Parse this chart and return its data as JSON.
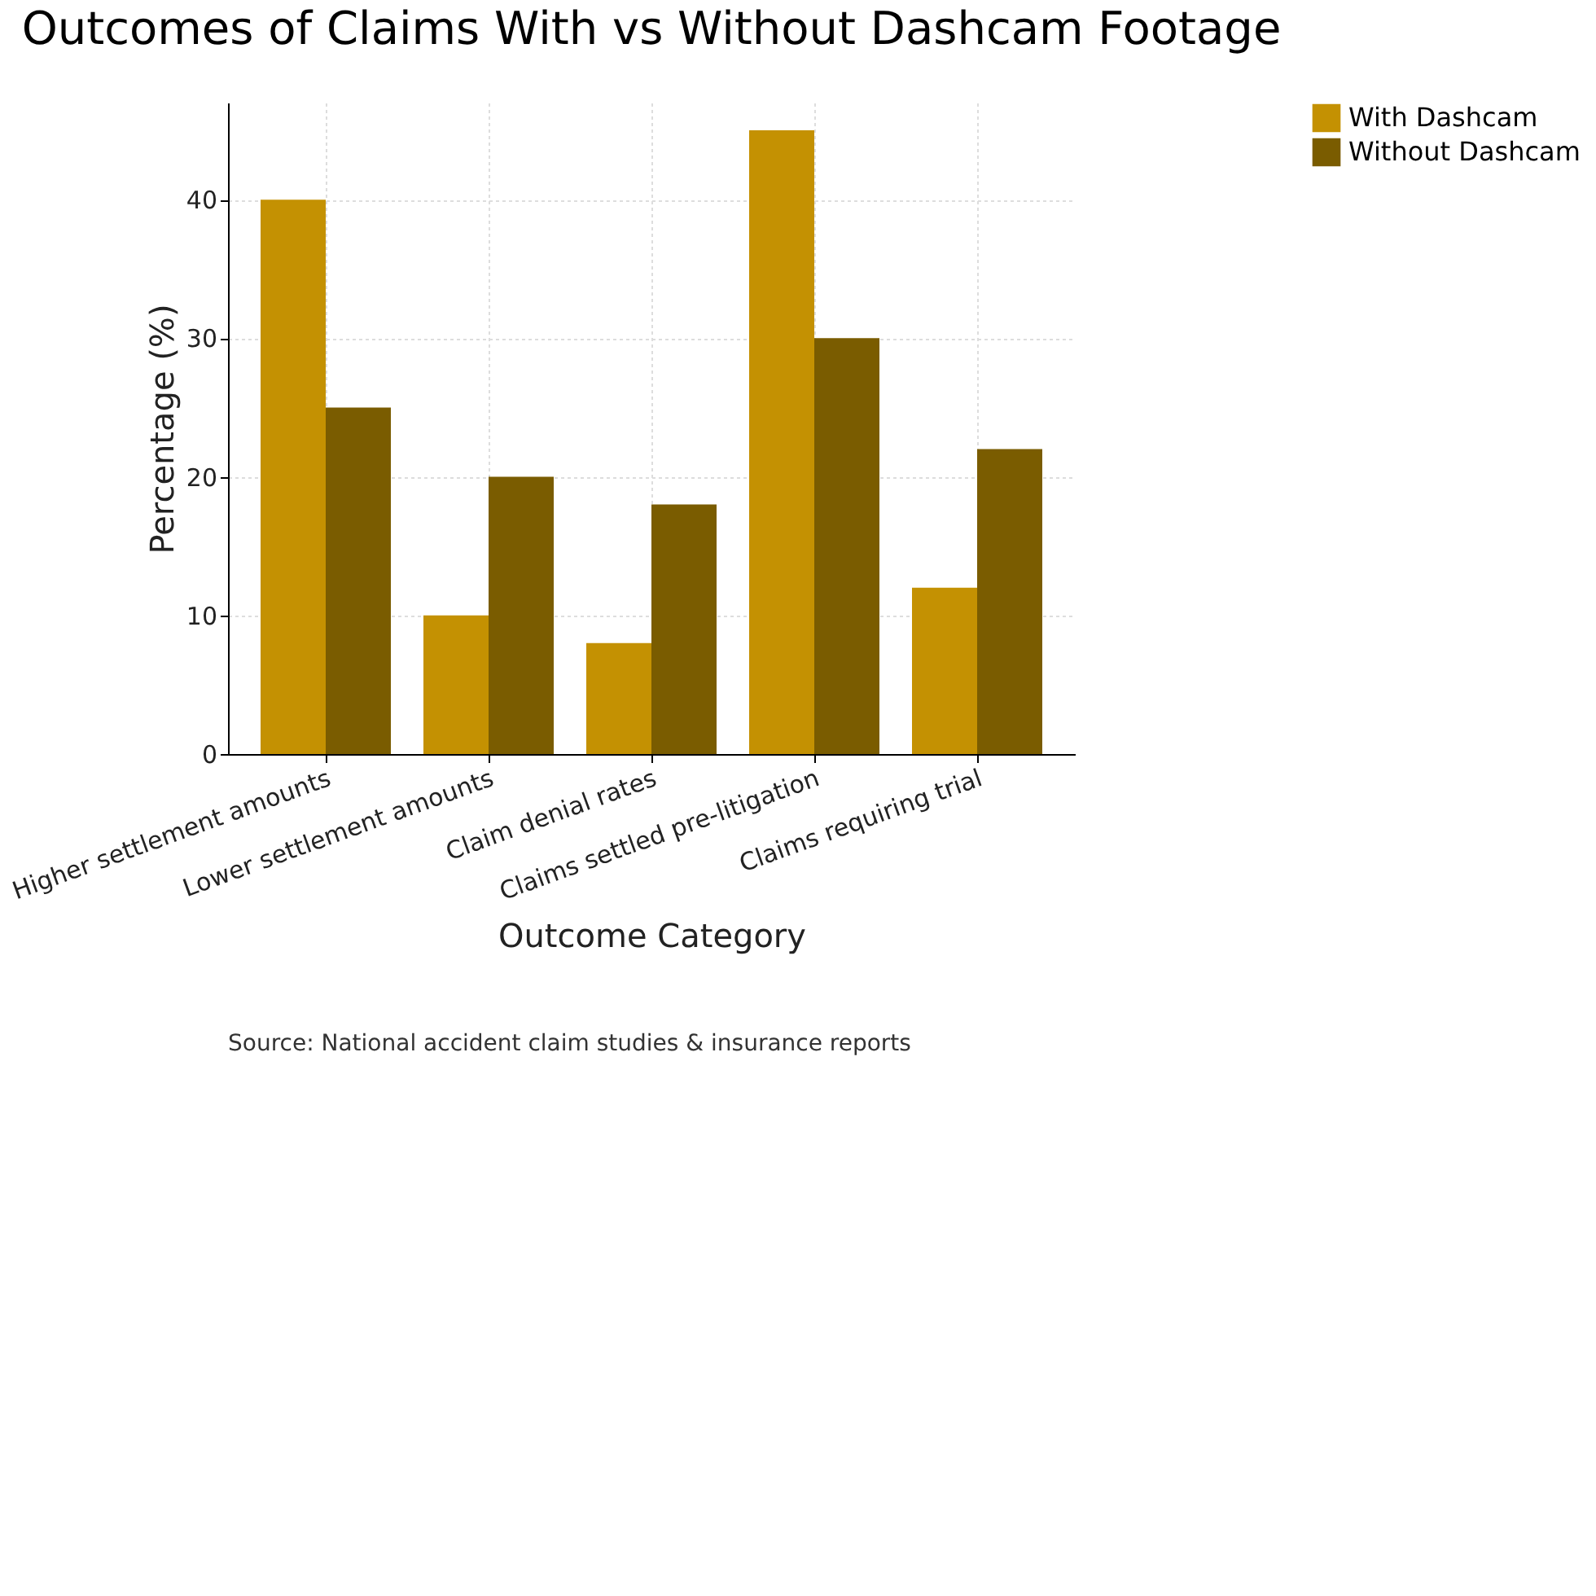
{
  "chart_data": {
    "type": "bar",
    "title": "Outcomes of Claims With vs Without Dashcam Footage",
    "xlabel": "Outcome Category",
    "ylabel": "Percentage (%)",
    "categories": [
      "Higher settlement amounts",
      "Lower settlement amounts",
      "Claim denial rates",
      "Claims settled pre-litigation",
      "Claims requiring trial"
    ],
    "series": [
      {
        "name": "With Dashcam",
        "color": "#c49102",
        "values": [
          40,
          10,
          8,
          45,
          12
        ]
      },
      {
        "name": "Without Dashcam",
        "color": "#7a5c00",
        "values": [
          25,
          20,
          18,
          30,
          22
        ]
      }
    ],
    "ylim": [
      0,
      47
    ],
    "yticks": [
      0,
      10,
      20,
      30,
      40
    ],
    "grid": true,
    "legend": "right",
    "annotations": [
      "Source: National accident claim studies & insurance reports"
    ]
  }
}
